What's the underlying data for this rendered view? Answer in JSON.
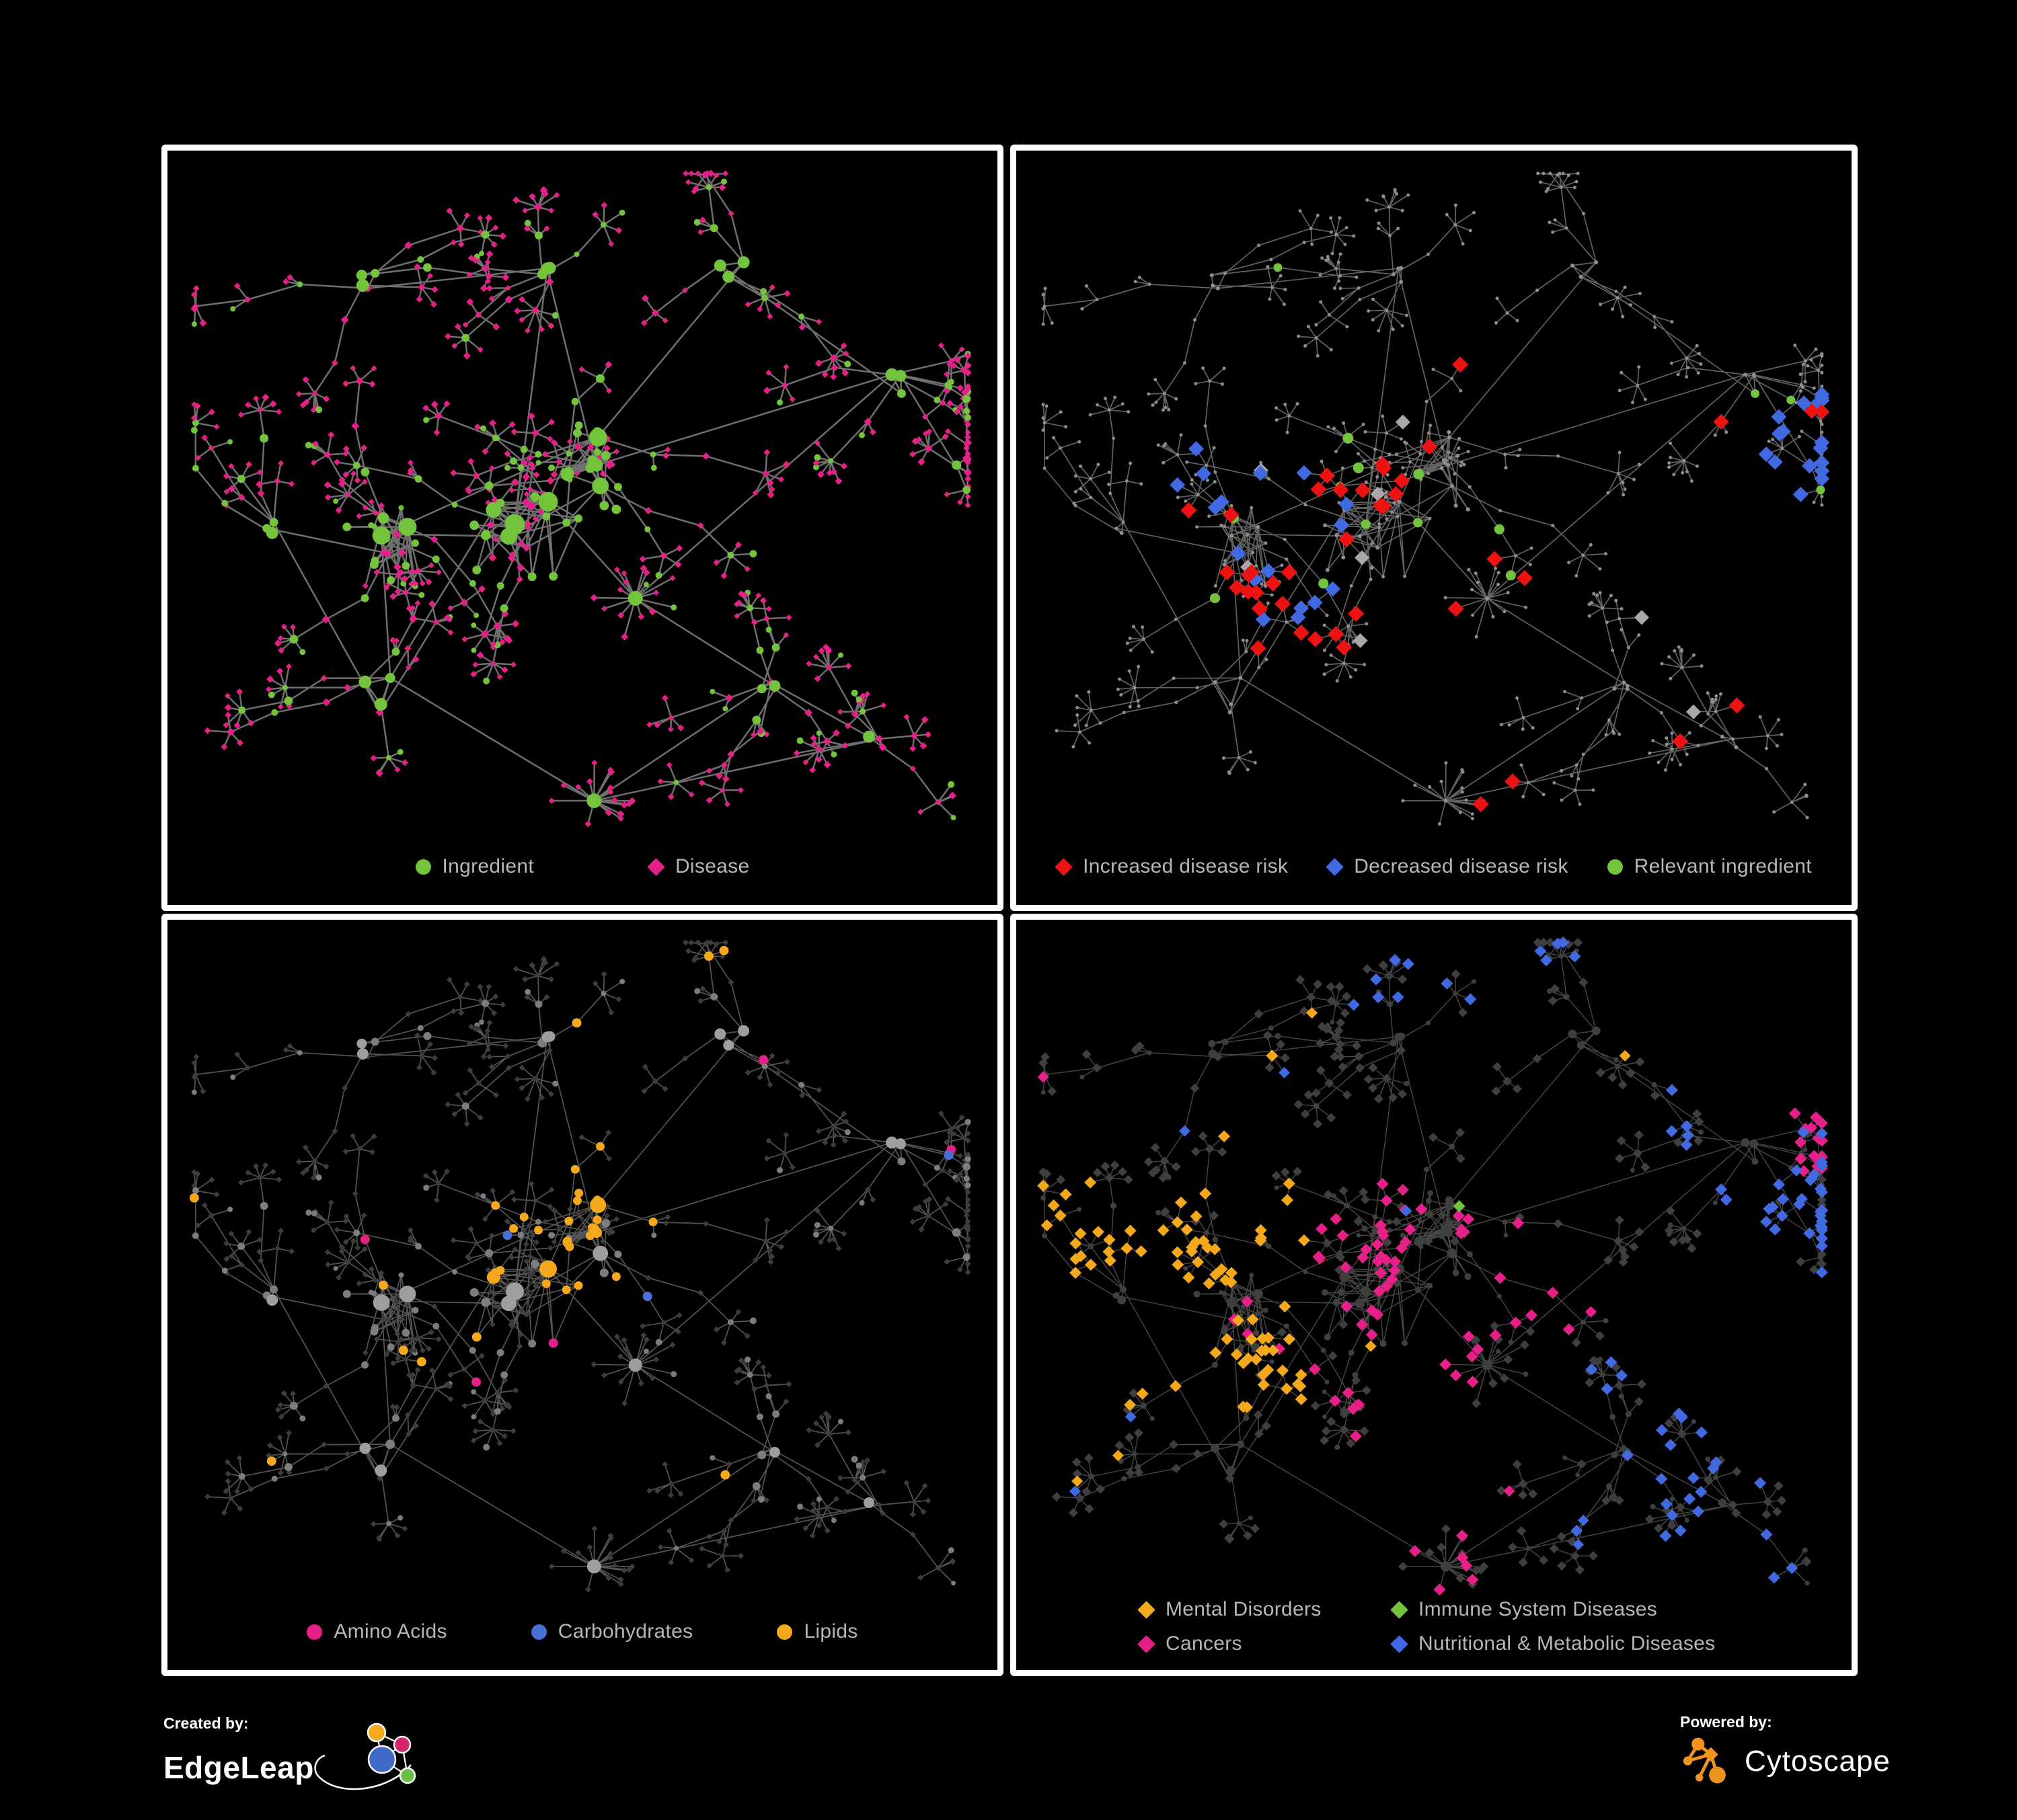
{
  "panels": [
    {
      "id": "ingredient-disease",
      "legend": [
        {
          "label": "Ingredient",
          "shape": "circle",
          "color": "#74c33c"
        },
        {
          "label": "Disease",
          "shape": "diamond",
          "color": "#e62088"
        }
      ]
    },
    {
      "id": "disease-risk",
      "legend": [
        {
          "label": "Increased disease risk",
          "shape": "diamond",
          "color": "#ee1212"
        },
        {
          "label": "Decreased disease risk",
          "shape": "diamond",
          "color": "#4169e1"
        },
        {
          "label": "Relevant ingredient",
          "shape": "circle",
          "color": "#74c33c"
        }
      ]
    },
    {
      "id": "nutrient-classes",
      "legend": [
        {
          "label": "Amino Acids",
          "shape": "circle",
          "color": "#e62088"
        },
        {
          "label": "Carbohydrates",
          "shape": "circle",
          "color": "#4a6fd6"
        },
        {
          "label": "Lipids",
          "shape": "circle",
          "color": "#f5a81c"
        }
      ]
    },
    {
      "id": "disease-classes",
      "legend": [
        {
          "label": "Mental Disorders",
          "shape": "diamond",
          "color": "#f5a81c"
        },
        {
          "label": "Immune System Diseases",
          "shape": "diamond",
          "color": "#74c33c"
        },
        {
          "label": "Cancers",
          "shape": "diamond",
          "color": "#e62088"
        },
        {
          "label": "Nutritional & Metabolic Diseases",
          "shape": "diamond",
          "color": "#4169e1"
        }
      ]
    }
  ],
  "footer": {
    "created_by": "Created by:",
    "created_brand": "EdgeLeap",
    "powered_by": "Powered by:",
    "powered_brand": "Cytoscape"
  },
  "palette": {
    "green": "#74c33c",
    "pink": "#e62088",
    "red": "#ee1212",
    "blue": "#4169e1",
    "silver": "#a9a9a9",
    "amber": "#f5a81c",
    "dark": "#3d3d3d",
    "carb_blue": "#4a6fd6",
    "legend_text": "#b6b6b6",
    "panel_border": "#ffffff",
    "background": "#000000",
    "edgeleap_logo": {
      "orange": "#f5a81c",
      "magenta": "#d6246e",
      "blue": "#4169c8",
      "green": "#6abf4b"
    },
    "cytoscape_logo": "#f0941f"
  },
  "network": {
    "seed": 77031,
    "panel_styles": [
      {
        "edge": "#757575",
        "edge_width": 2.5,
        "edge_opacity": 0.95
      },
      {
        "edge": "#6d6d6d",
        "edge_width": 1.7,
        "edge_opacity": 0.9
      },
      {
        "edge": "#8d8d8d",
        "edge_width": 1.7,
        "edge_opacity": 0.6
      },
      {
        "edge": "#909090",
        "edge_width": 1.4,
        "edge_opacity": 0.5
      }
    ]
  }
}
